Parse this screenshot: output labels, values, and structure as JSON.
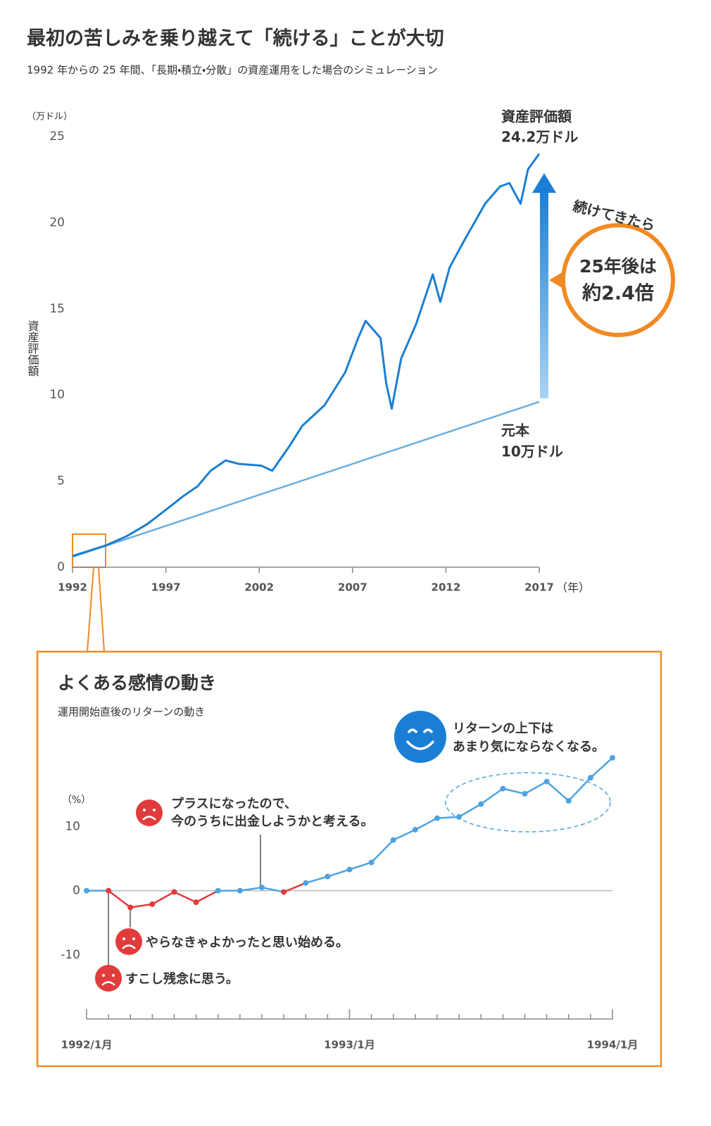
{
  "header": {
    "title": "最初の苦しみを乗り越えて「続ける」ことが大切",
    "subtitle": "1992 年からの 25 年間、「長期・積立・分散」の資産運用をした場合のシミュレーション"
  },
  "chart_data": [
    {
      "type": "line",
      "y_unit": "（万ドル）",
      "y_label": "資産評価額",
      "x_unit": "（年）",
      "xlim": [
        1992,
        2017
      ],
      "xticks": [
        1992,
        1997,
        2002,
        2007,
        2012,
        2017
      ],
      "ylim": [
        0,
        25
      ],
      "yticks": [
        0,
        5,
        10,
        15,
        20,
        25
      ],
      "series": [
        {
          "name": "資産評価額",
          "label": "24.2万ドル",
          "color": "#1a7fd4",
          "x": [
            1992.0,
            1993.8,
            1994.9,
            1996.0,
            1997.2,
            1997.9,
            1998.7,
            1999.4,
            2000.2,
            2000.9,
            2002.1,
            2002.7,
            2003.6,
            2004.3,
            2005.5,
            2006.6,
            2007.3,
            2007.7,
            2008.5,
            2008.8,
            2009.1,
            2009.6,
            2010.4,
            2011.3,
            2011.7,
            2012.2,
            2013.0,
            2014.1,
            2014.9,
            2015.4,
            2016.0,
            2016.4,
            2017.0
          ],
          "values": [
            0.65,
            1.27,
            1.8,
            2.5,
            3.5,
            4.1,
            4.7,
            5.6,
            6.2,
            6.0,
            5.9,
            5.6,
            7.0,
            8.2,
            9.4,
            11.3,
            13.3,
            14.3,
            13.3,
            10.7,
            9.2,
            12.1,
            14.1,
            17.0,
            15.4,
            17.4,
            19.0,
            21.1,
            22.1,
            22.3,
            21.1,
            23.1,
            24.0
          ]
        },
        {
          "name": "元本",
          "label": "10万ドル",
          "color": "#6aaee0",
          "x": [
            1992,
            2017
          ],
          "values": [
            0.6,
            9.6
          ]
        }
      ],
      "callout": {
        "lead": "続けてきたら",
        "lines": [
          "25年後は",
          "約2.4倍"
        ]
      }
    },
    {
      "type": "line",
      "title": "よくある感情の動き",
      "subtitle": "運用開始直後のリターンの動き",
      "y_unit": "（%）",
      "categories": [
        "1992/1月",
        null,
        null,
        null,
        null,
        null,
        null,
        null,
        null,
        null,
        null,
        null,
        "1993/1月",
        null,
        null,
        null,
        null,
        null,
        null,
        null,
        null,
        null,
        null,
        null,
        "1994/1月"
      ],
      "values": [
        0,
        0,
        -2.6,
        -2.1,
        -0.2,
        -1.8,
        0,
        0,
        0.5,
        -0.2,
        1.2,
        2.2,
        3.3,
        4.4,
        7.9,
        9.5,
        11.3,
        11.5,
        13.5,
        15.9,
        15.1,
        17.0,
        14.0,
        17.6,
        20.7
      ],
      "color": "#4da3e0",
      "point_colors": [
        "#4da3e0",
        "#e03c3c",
        "#e03c3c",
        "#e03c3c",
        "#e03c3c",
        "#e03c3c",
        "#4da3e0",
        "#4da3e0",
        "#4da3e0",
        "#e03c3c",
        "#4da3e0",
        "#4da3e0",
        "#4da3e0",
        "#4da3e0",
        "#4da3e0",
        "#4da3e0",
        "#4da3e0",
        "#4da3e0",
        "#4da3e0",
        "#4da3e0",
        "#4da3e0",
        "#4da3e0",
        "#4da3e0",
        "#4da3e0",
        "#4da3e0"
      ],
      "ylim": [
        -20,
        22
      ],
      "yticks": [
        -10,
        0,
        10
      ],
      "annotations": [
        {
          "lines": [
            "プラスになったので、",
            "今のうちに出金しようかと考える。"
          ]
        },
        {
          "lines": [
            "やらなきゃよかったと思い始める。"
          ]
        },
        {
          "lines": [
            "すこし残念に思う。"
          ]
        },
        {
          "lines": [
            "リターンの上下は",
            "あまり気にならなくなる。"
          ]
        }
      ]
    }
  ]
}
